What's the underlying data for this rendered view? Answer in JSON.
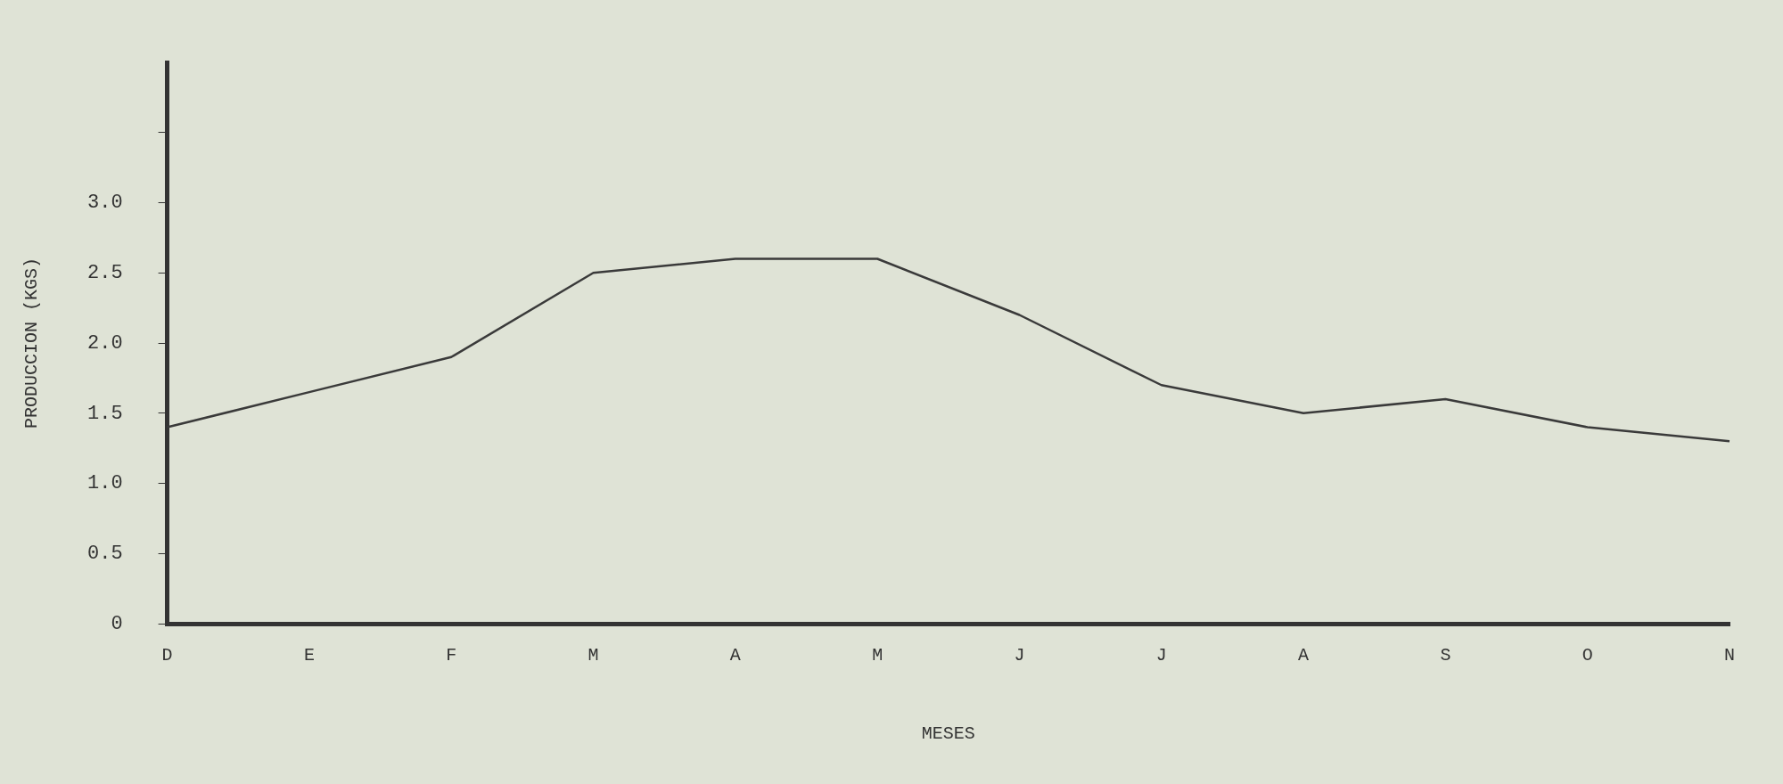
{
  "chart_data": {
    "type": "line",
    "xlabel": "MESES",
    "ylabel": "PRODUCCION (KGS)",
    "categories": [
      "D",
      "E",
      "F",
      "M",
      "A",
      "M",
      "J",
      "J",
      "A",
      "S",
      "O",
      "N"
    ],
    "series": [
      {
        "color": "#3a3a3a",
        "values": [
          1.4,
          1.65,
          1.9,
          2.5,
          2.6,
          2.6,
          2.2,
          1.7,
          1.5,
          1.6,
          1.4,
          1.3
        ]
      }
    ],
    "ylim": [
      0,
      4
    ],
    "yticks": [
      0,
      0.5,
      {
        "value": 1,
        "label": "1.0"
      },
      1.5,
      {
        "value": 2,
        "label": "2.0"
      },
      2.5,
      {
        "value": 3,
        "label": "3.0"
      },
      {
        "value": 3.5,
        "label": null
      }
    ],
    "grid": false,
    "legend": false,
    "marker": "none",
    "line_style": "solid"
  }
}
